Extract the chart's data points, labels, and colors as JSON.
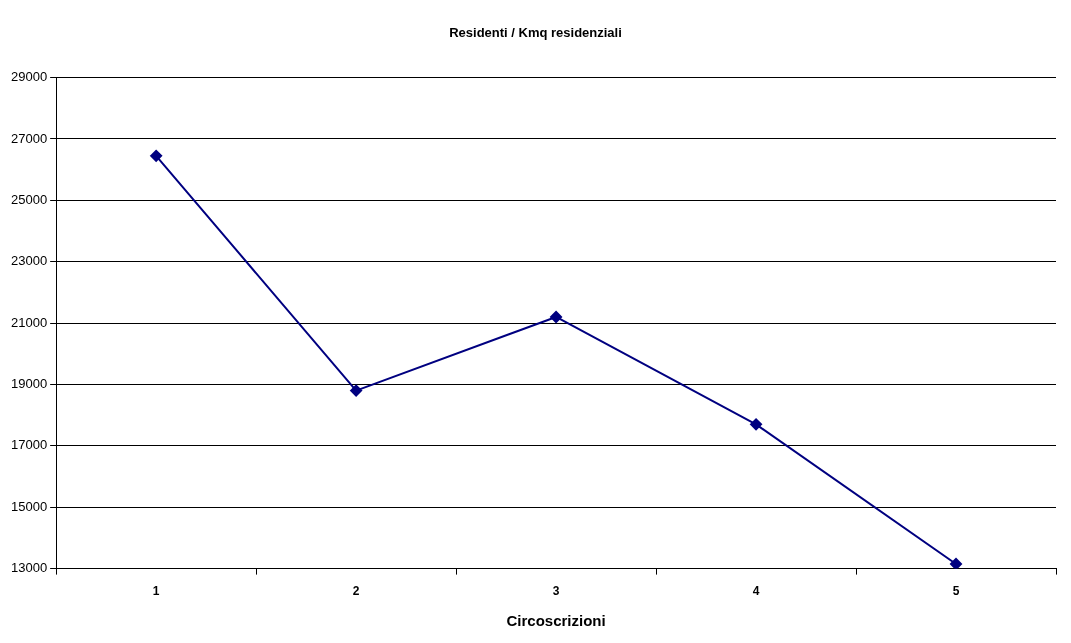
{
  "chart_data": {
    "type": "line",
    "title": "Residenti / Kmq residenziali",
    "xlabel": "Circoscrizioni",
    "categories": [
      "1",
      "2",
      "3",
      "4",
      "5"
    ],
    "series": [
      {
        "color": "#000080",
        "values": [
          26450,
          18800,
          21200,
          17700,
          13150
        ]
      }
    ],
    "ylim": [
      13000,
      29000
    ],
    "yticks": [
      13000,
      15000,
      17000,
      19000,
      21000,
      23000,
      25000,
      27000,
      29000
    ],
    "grid": "y",
    "legend": false,
    "marker": "diamond",
    "line_style": "solid"
  }
}
